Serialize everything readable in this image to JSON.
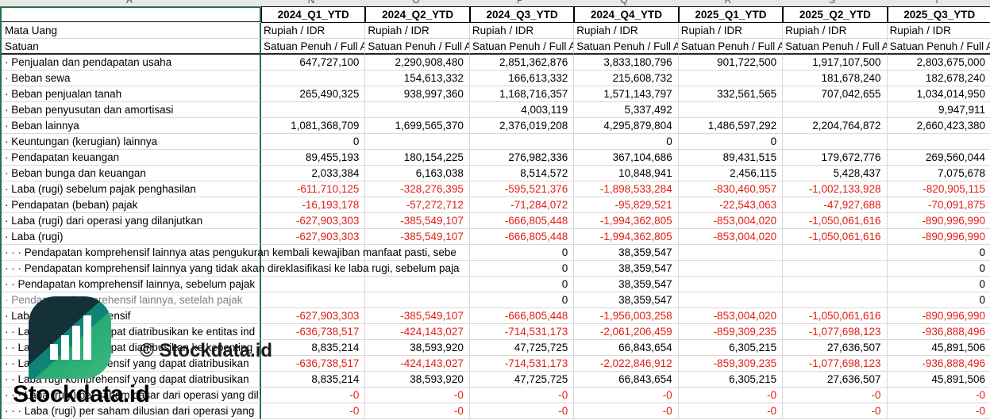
{
  "sheet": {
    "column_letters": [
      "A",
      "N",
      "O",
      "P",
      "Q",
      "R",
      "S",
      "T"
    ],
    "header_columns": [
      "2024_Q1_YTD",
      "2024_Q2_YTD",
      "2024_Q3_YTD",
      "2024_Q4_YTD",
      "2025_Q1_YTD",
      "2025_Q2_YTD",
      "2025_Q3_YTD"
    ],
    "rows": [
      {
        "label": "Mata Uang",
        "text_values": true,
        "values": [
          "Rupiah / IDR",
          "Rupiah / IDR",
          "Rupiah / IDR",
          "Rupiah / IDR",
          "Rupiah / IDR",
          "Rupiah / IDR",
          "Rupiah / IDR"
        ],
        "value_color": "black"
      },
      {
        "label": "Satuan",
        "text_values": true,
        "dark_under": true,
        "values": [
          "Satuan Penuh / Full A",
          "Satuan Penuh / Full A",
          "Satuan Penuh / Full A",
          "Satuan Penuh / Full A",
          "Satuan Penuh / Full A",
          "Satuan Penuh / Full A",
          "Satuan Penuh / Full A"
        ],
        "value_color": "black"
      },
      {
        "label": "· Penjualan dan pendapatan usaha",
        "values": [
          "647,727,100",
          "2,290,908,480",
          "2,851,362,876",
          "3,833,180,796",
          "901,722,500",
          "1,917,107,500",
          "2,803,675,000"
        ],
        "value_color": "black"
      },
      {
        "label": "· Beban sewa",
        "values": [
          "",
          "154,613,332",
          "166,613,332",
          "215,608,732",
          "",
          "181,678,240",
          "182,678,240"
        ],
        "value_color": "black"
      },
      {
        "label": "· Beban penjualan tanah",
        "values": [
          "265,490,325",
          "938,997,360",
          "1,168,716,357",
          "1,571,143,797",
          "332,561,565",
          "707,042,655",
          "1,034,014,950"
        ],
        "value_color": "black"
      },
      {
        "label": "· Beban penyusutan dan amortisasi",
        "values": [
          "",
          "",
          "4,003,119",
          "5,337,492",
          "",
          "",
          "9,947,911"
        ],
        "value_color": "black"
      },
      {
        "label": "· Beban lainnya",
        "values": [
          "1,081,368,709",
          "1,699,565,370",
          "2,376,019,208",
          "4,295,879,804",
          "1,486,597,292",
          "2,204,764,872",
          "2,660,423,380"
        ],
        "value_color": "black"
      },
      {
        "label": "· Keuntungan (kerugian) lainnya",
        "values": [
          "0",
          "",
          "",
          "0",
          "0",
          "",
          ""
        ],
        "value_color": "black"
      },
      {
        "label": "· Pendapatan keuangan",
        "values": [
          "89,455,193",
          "180,154,225",
          "276,982,336",
          "367,104,686",
          "89,431,515",
          "179,672,776",
          "269,560,044"
        ],
        "value_color": "black"
      },
      {
        "label": "· Beban bunga dan keuangan",
        "values": [
          "2,033,384",
          "6,163,038",
          "8,514,572",
          "10,848,941",
          "2,456,115",
          "5,428,437",
          "7,075,678"
        ],
        "value_color": "black"
      },
      {
        "label": "· Laba (rugi) sebelum pajak penghasilan",
        "values": [
          "-611,710,125",
          "-328,276,395",
          "-595,521,376",
          "-1,898,533,284",
          "-830,460,957",
          "-1,002,133,928",
          "-820,905,115"
        ],
        "value_color": "red"
      },
      {
        "label": "· Pendapatan (beban) pajak",
        "values": [
          "-16,193,178",
          "-57,272,712",
          "-71,284,072",
          "-95,829,521",
          "-22,543,063",
          "-47,927,688",
          "-70,091,875"
        ],
        "value_color": "red"
      },
      {
        "label": "· Laba (rugi) dari operasi yang dilanjutkan",
        "values": [
          "-627,903,303",
          "-385,549,107",
          "-666,805,448",
          "-1,994,362,805",
          "-853,004,020",
          "-1,050,061,616",
          "-890,996,990"
        ],
        "value_color": "red"
      },
      {
        "label": "· Laba (rugi)",
        "values": [
          "-627,903,303",
          "-385,549,107",
          "-666,805,448",
          "-1,994,362,805",
          "-853,004,020",
          "-1,050,061,616",
          "-890,996,990"
        ],
        "value_color": "red"
      },
      {
        "label": "· · · Pendapatan komprehensif lainnya atas pengukuran kembali kewajiban manfaat pasti, sebe",
        "overflow": true,
        "values": [
          "",
          "",
          "0",
          "38,359,547",
          "",
          "",
          "0"
        ],
        "value_color": "black"
      },
      {
        "label": "· · · Pendapatan komprehensif lainnya yang tidak akan direklasifikasi ke laba rugi, sebelum paja",
        "overflow": true,
        "values": [
          "",
          "",
          "0",
          "38,359,547",
          "",
          "",
          "0"
        ],
        "value_color": "black"
      },
      {
        "label": "· · Pendapatan komprehensif lainnya, sebelum pajak",
        "overflow": true,
        "values": [
          "",
          "",
          "0",
          "38,359,547",
          "",
          "",
          "0"
        ],
        "value_color": "black"
      },
      {
        "label": "· Pendapatan komprehensif lainnya, setelah pajak",
        "overflow": true,
        "label_gray": true,
        "values": [
          "",
          "",
          "0",
          "38,359,547",
          "",
          "",
          "0"
        ],
        "value_color": "black"
      },
      {
        "label": "· Laba (rugi) komprehensif",
        "values": [
          "-627,903,303",
          "-385,549,107",
          "-666,805,448",
          "-1,956,003,258",
          "-853,004,020",
          "-1,050,061,616",
          "-890,996,990"
        ],
        "value_color": "red"
      },
      {
        "label": "· · Laba (rugi) yang dapat diatribusikan ke entitas ind",
        "values": [
          "-636,738,517",
          "-424,143,027",
          "-714,531,173",
          "-2,061,206,459",
          "-859,309,235",
          "-1,077,698,123",
          "-936,888,496"
        ],
        "value_color": "red"
      },
      {
        "label": "· · Laba (rugi) yang dapat diatribusikan ke kepenting",
        "values": [
          "8,835,214",
          "38,593,920",
          "47,725,725",
          "66,843,654",
          "6,305,215",
          "27,636,507",
          "45,891,506"
        ],
        "value_color": "black"
      },
      {
        "label": "· · Laba rugi komprehensif yang dapat diatribusikan",
        "values": [
          "-636,738,517",
          "-424,143,027",
          "-714,531,173",
          "-2,022,846,912",
          "-859,309,235",
          "-1,077,698,123",
          "-936,888,496"
        ],
        "value_color": "red"
      },
      {
        "label": "· · Laba rugi komprehensif yang dapat diatribusikan",
        "values": [
          "8,835,214",
          "38,593,920",
          "47,725,725",
          "66,843,654",
          "6,305,215",
          "27,636,507",
          "45,891,506"
        ],
        "value_color": "black"
      },
      {
        "label": "· · · Laba (rugi) per saham dasar dari operasi yang dil",
        "values": [
          "-0",
          "-0",
          "-0",
          "-0",
          "-0",
          "-0",
          "-0"
        ],
        "value_color": "red"
      },
      {
        "label": "· · · Laba (rugi) per saham dilusian dari operasi yang",
        "values": [
          "-0",
          "-0",
          "-0",
          "-0",
          "-0",
          "-0",
          "-0"
        ],
        "value_color": "red"
      }
    ]
  },
  "colors": {
    "negative_red": "#e02015",
    "selection_green": "#217346",
    "gray_label": "#7f7f7f",
    "logo_dark_teal": "#14313a",
    "logo_green": "#3cba7e"
  },
  "watermark": {
    "copyright": "© Stockdata.id",
    "brand": "Stockdata.id",
    "logo": "stockdata-logo"
  }
}
